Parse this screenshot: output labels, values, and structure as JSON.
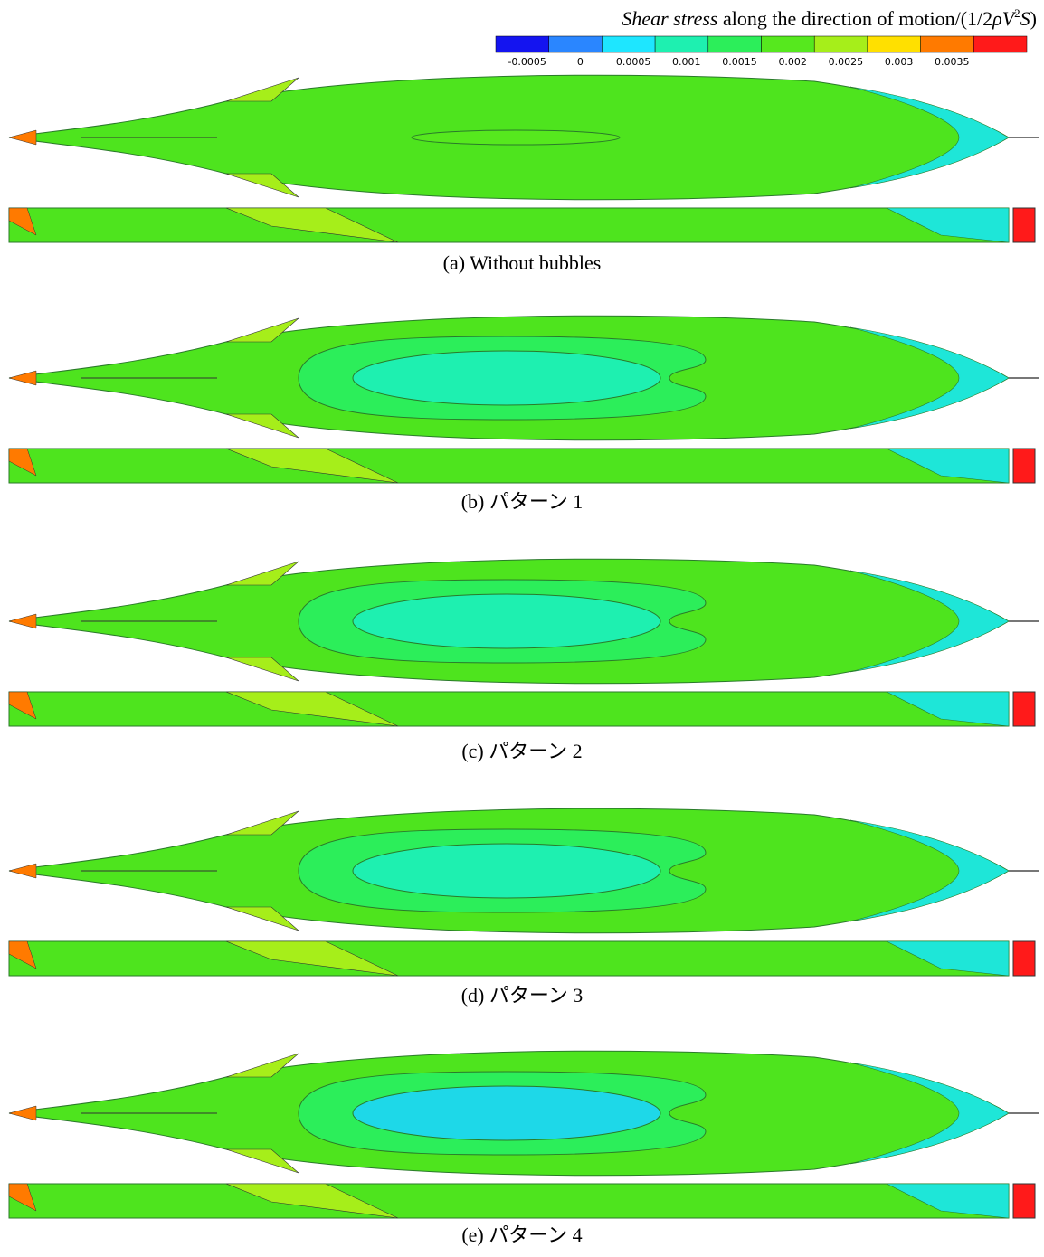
{
  "colorbar": {
    "title": {
      "italic": "Shear stress",
      "text": " along the direction of motion/(1/2",
      "rho": "ρV",
      "sup": "2",
      "s": "S",
      "close": ")"
    },
    "colors": [
      "#1414f0",
      "#2a86ff",
      "#1ee6ff",
      "#1ef0b0",
      "#2cee5a",
      "#56e81e",
      "#a6ee1a",
      "#ffe000",
      "#ff7a00",
      "#ff1a1a"
    ],
    "ticks": [
      -0.0005,
      0,
      0.0005,
      0.001,
      0.0015,
      0.002,
      0.0025,
      0.003,
      0.0035
    ]
  },
  "panels": [
    {
      "caption": "(a)  Without bubbles"
    },
    {
      "caption": "(b)  パターン 1"
    },
    {
      "caption": "(c)  パターン 2"
    },
    {
      "caption": "(d)  パターン 3"
    },
    {
      "caption": "(e)  パターン 4"
    }
  ]
}
